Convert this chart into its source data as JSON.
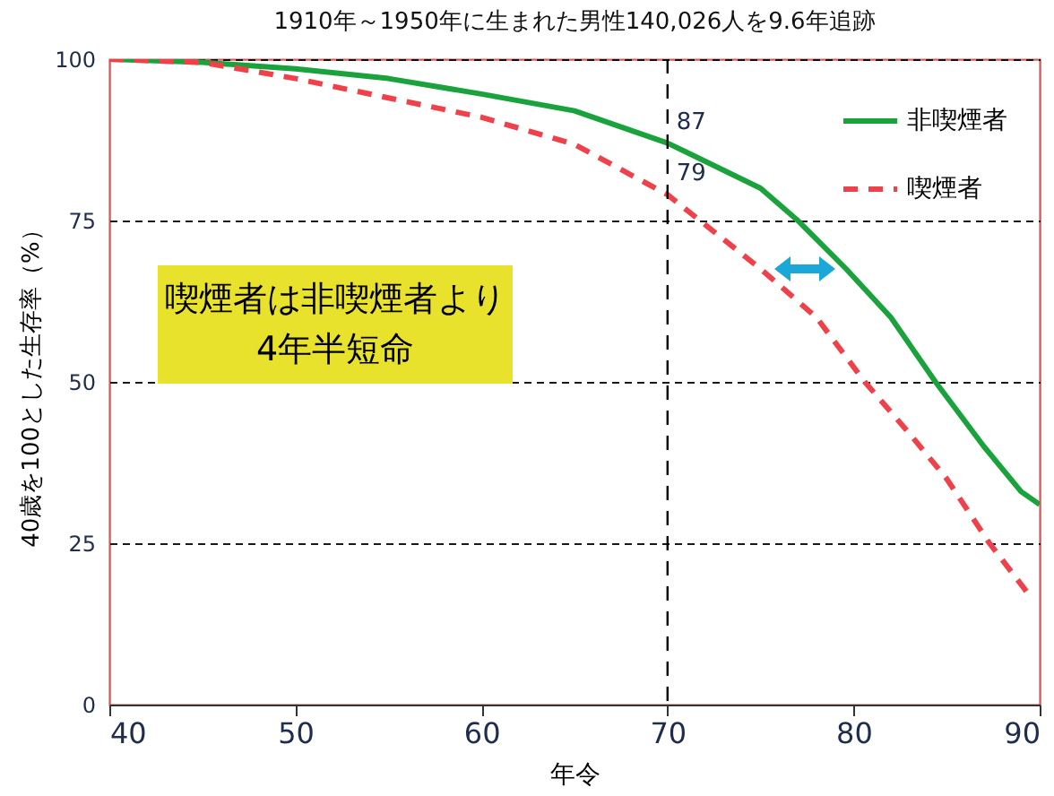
{
  "chart_data": {
    "type": "line",
    "title": "1910年～1950年に生まれた男性140,026人を9.6年追跡",
    "xlabel": "年令",
    "ylabel": "40歳を100とした生存率（%）",
    "xlim": [
      40,
      90
    ],
    "xticks": [
      40,
      50,
      60,
      70,
      80,
      90
    ],
    "ylim": [
      0,
      100
    ],
    "yticks": [
      0,
      25,
      50,
      75,
      100
    ],
    "grid": "y",
    "legend": "top right",
    "series": [
      {
        "name": "非喫煙者",
        "color": "#1aa33c",
        "line_style": "solid",
        "x": [
          40,
          45,
          50,
          55,
          60,
          65,
          70,
          75,
          77,
          79.6,
          82,
          84.4,
          87,
          89,
          90
        ],
        "values": [
          100,
          99.5,
          98.5,
          97,
          94.6,
          92,
          87,
          80,
          75,
          67.5,
          60,
          50,
          40,
          33,
          31
        ]
      },
      {
        "name": "喫煙者",
        "color": "#f0404a",
        "line_style": "dashed",
        "x": [
          40,
          45,
          50,
          55,
          60,
          65,
          70,
          75,
          78,
          80.6,
          83,
          85,
          87.3,
          89.3
        ],
        "values": [
          100,
          99.5,
          97,
          94,
          91,
          86.8,
          79,
          67.5,
          60,
          50,
          42,
          35,
          25,
          17.5
        ]
      }
    ],
    "ref_lines": [
      {
        "axis": "x",
        "value": 70,
        "line_style": "dashed",
        "color": "#000000"
      }
    ],
    "annotations": [
      {
        "text": "87",
        "x": 70,
        "y": 87
      },
      {
        "text": "79",
        "x": 70,
        "y": 79
      },
      "喫煙者は非喫煙者より\n4年半短命"
    ]
  }
}
